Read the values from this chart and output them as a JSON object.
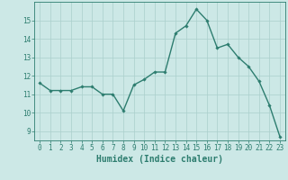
{
  "x": [
    0,
    1,
    2,
    3,
    4,
    5,
    6,
    7,
    8,
    9,
    10,
    11,
    12,
    13,
    14,
    15,
    16,
    17,
    18,
    19,
    20,
    21,
    22,
    23
  ],
  "y": [
    11.6,
    11.2,
    11.2,
    11.2,
    11.4,
    11.4,
    11.0,
    11.0,
    10.1,
    11.5,
    11.8,
    12.2,
    12.2,
    14.3,
    14.7,
    15.6,
    15.0,
    13.5,
    13.7,
    13.0,
    12.5,
    11.7,
    10.4,
    8.7
  ],
  "line_color": "#2d7d6f",
  "marker": "D",
  "marker_size": 1.8,
  "bg_color": "#cce8e6",
  "grid_color": "#aacfcc",
  "axis_color": "#2d7d6f",
  "xlabel": "Humidex (Indice chaleur)",
  "ylim": [
    8.5,
    16.0
  ],
  "xlim": [
    -0.5,
    23.5
  ],
  "yticks": [
    9,
    10,
    11,
    12,
    13,
    14,
    15
  ],
  "xticks": [
    0,
    1,
    2,
    3,
    4,
    5,
    6,
    7,
    8,
    9,
    10,
    11,
    12,
    13,
    14,
    15,
    16,
    17,
    18,
    19,
    20,
    21,
    22,
    23
  ],
  "tick_fontsize": 5.5,
  "xlabel_fontsize": 7.0,
  "line_width": 1.0
}
